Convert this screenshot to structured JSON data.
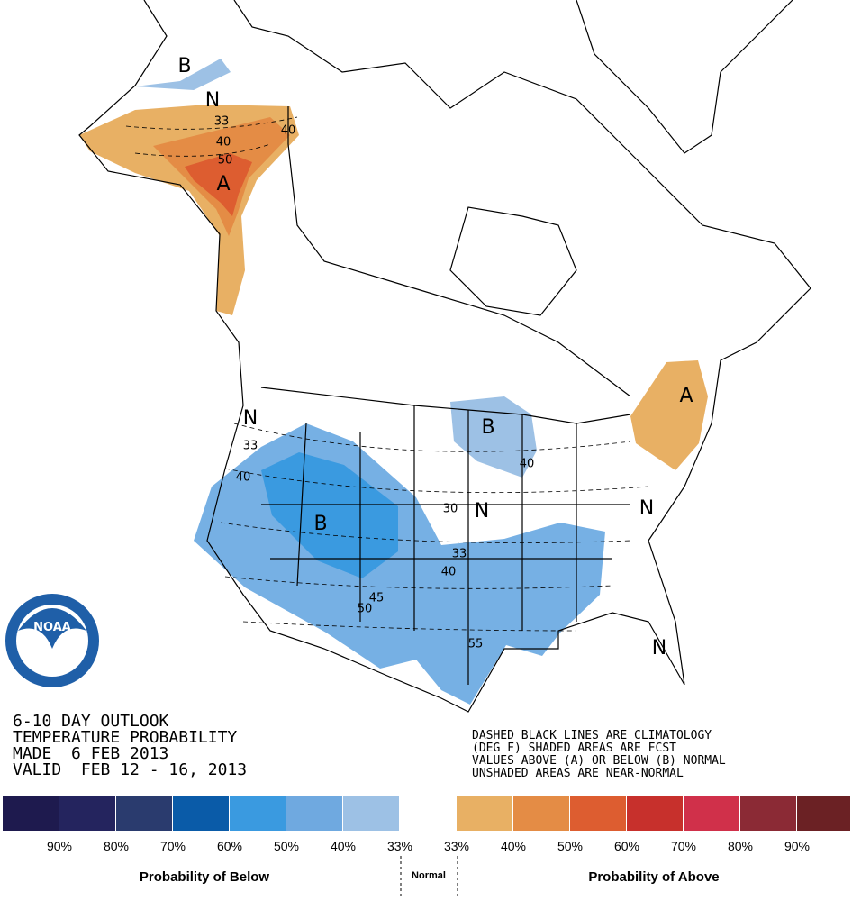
{
  "title_lines": [
    "6-10 DAY OUTLOOK",
    "TEMPERATURE PROBABILITY",
    "MADE  6 FEB 2013",
    "VALID  FEB 12 - 16, 2013"
  ],
  "notes": [
    "DASHED BLACK LINES ARE CLIMATOLOGY",
    "(DEG F) SHADED AREAS ARE FCST",
    "VALUES ABOVE (A) OR BELOW (B) NORMAL",
    "UNSHADED AREAS ARE NEAR-NORMAL"
  ],
  "logo_text": "NOAA",
  "map_labels": [
    "B",
    "N",
    "33",
    "40",
    "50",
    "A",
    "40",
    "N",
    "33",
    "40",
    "B",
    "B",
    "40",
    "30",
    "N",
    "33",
    "40",
    "45",
    "50",
    "55",
    "N",
    "N",
    "A"
  ],
  "legend": {
    "labels": [
      "90%",
      "80%",
      "70%",
      "60%",
      "50%",
      "40%",
      "33%",
      "33%",
      "40%",
      "50%",
      "60%",
      "70%",
      "80%",
      "90%"
    ],
    "below_caption": "Probability of Below",
    "normal_caption": "Normal",
    "above_caption": "Probability of Above"
  }
}
